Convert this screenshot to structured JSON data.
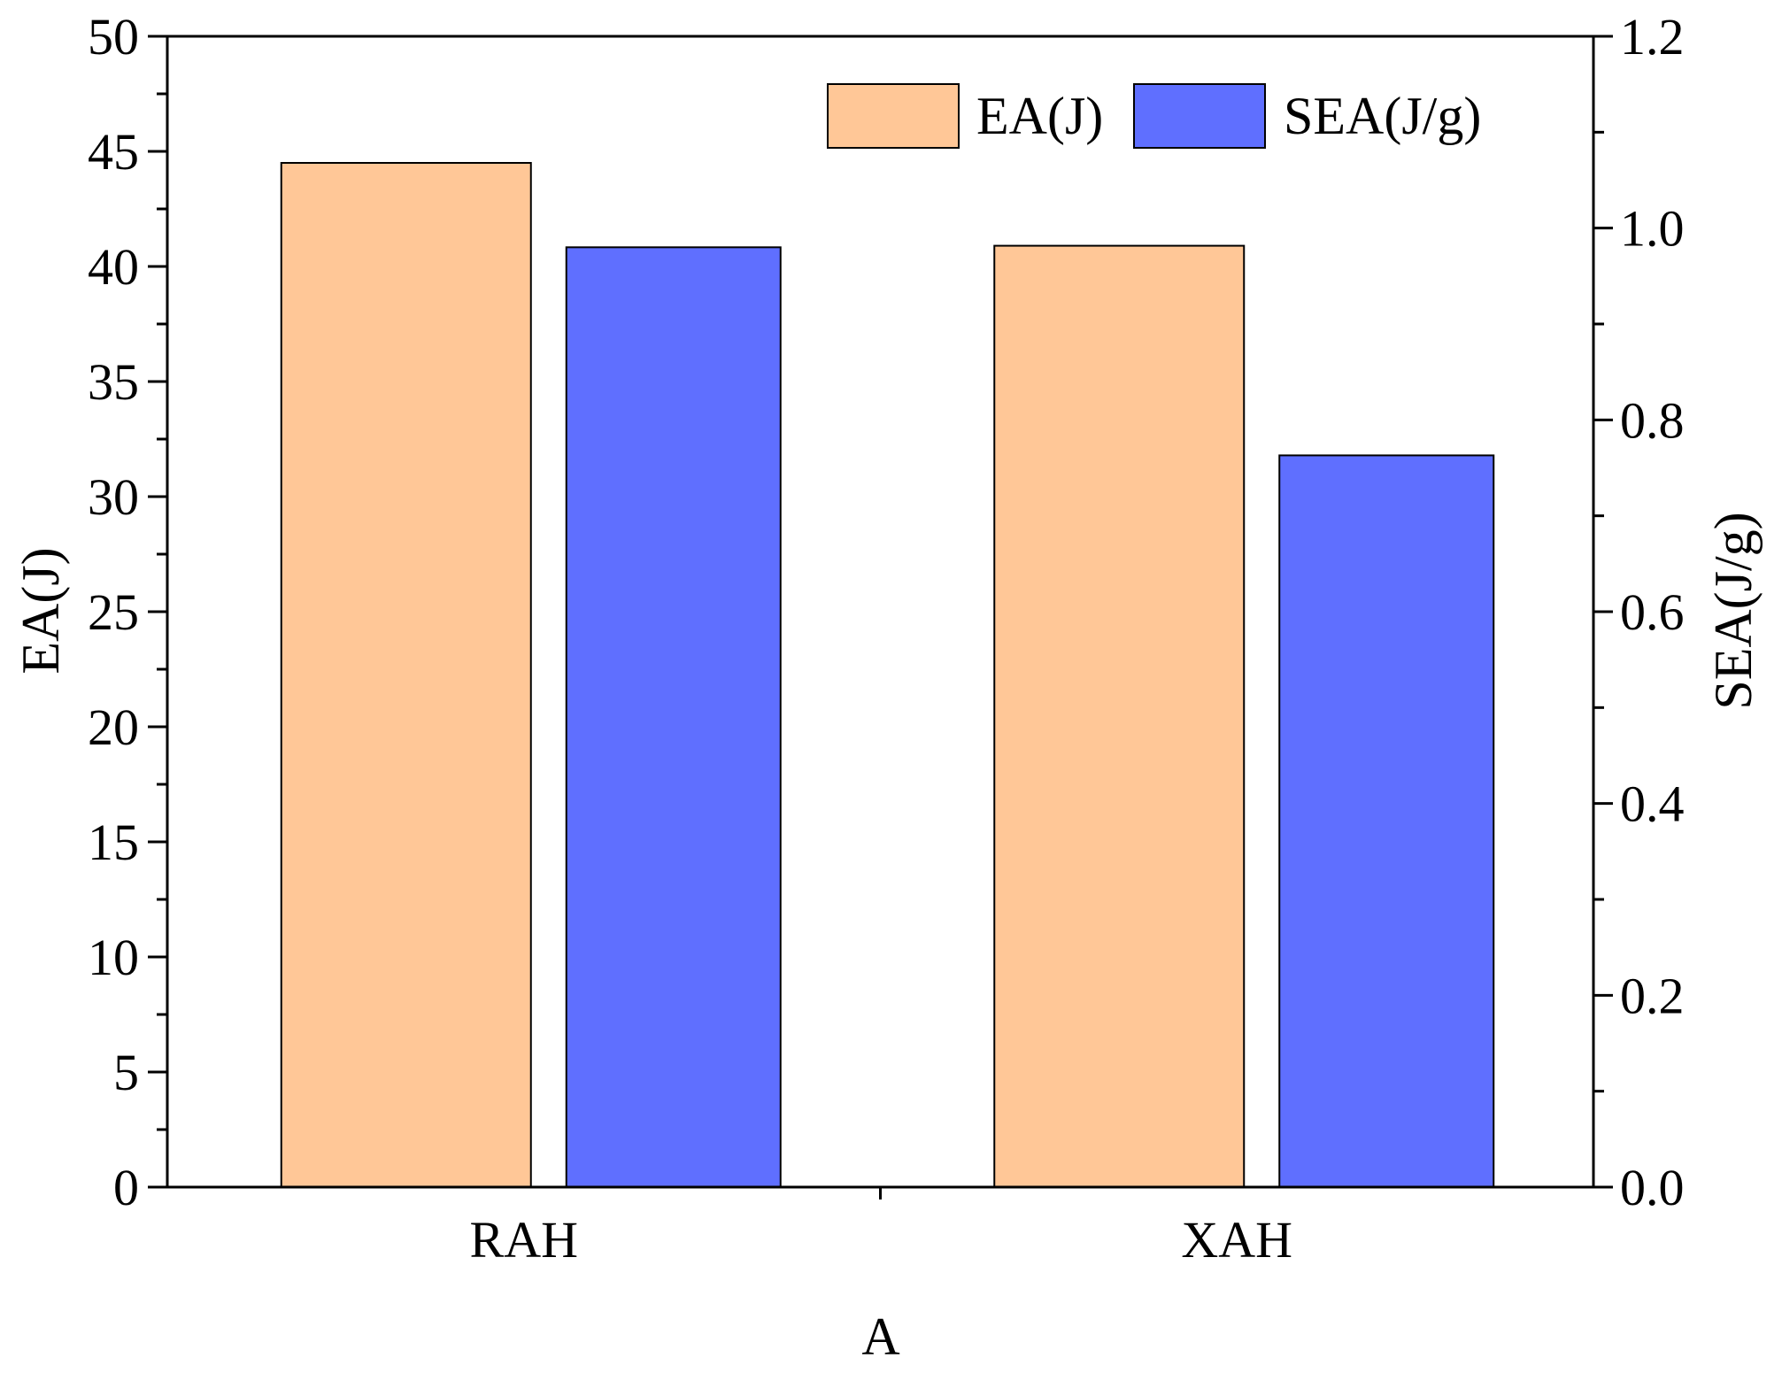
{
  "chart_data": {
    "type": "bar",
    "categories": [
      "RAH",
      "XAH"
    ],
    "xlabel": "A",
    "series": [
      {
        "name": "EA(J)",
        "axis": "left",
        "values": [
          44.5,
          40.9
        ],
        "color": "#FFC797"
      },
      {
        "name": "SEA(J/g)",
        "axis": "right",
        "values": [
          0.98,
          0.763
        ],
        "color": "#5F6FFF"
      }
    ],
    "y_left": {
      "label": "EA(J)",
      "ylim": [
        0,
        50
      ],
      "ticks": [
        "0",
        "5",
        "10",
        "15",
        "20",
        "25",
        "30",
        "35",
        "40",
        "45",
        "50"
      ]
    },
    "y_right": {
      "label": "SEA(J/g)",
      "ylim": [
        0,
        1.2
      ],
      "ticks": [
        "0.0",
        "0.2",
        "0.4",
        "0.6",
        "0.8",
        "1.0",
        "1.2"
      ]
    },
    "legend": {
      "placement": "top-right",
      "orientation": "horizontal"
    },
    "grid": false
  }
}
